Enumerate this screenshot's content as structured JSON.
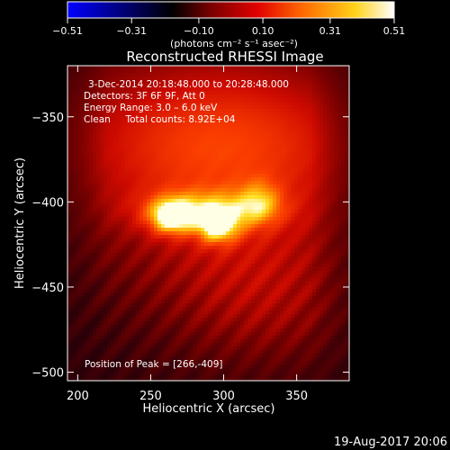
{
  "chart_data": {
    "type": "heatmap",
    "title": "Reconstructed RHESSI Image",
    "xlabel": "Heliocentric X (arcsec)",
    "ylabel": "Heliocentric Y (arcsec)",
    "xlim": [
      193,
      386
    ],
    "ylim": [
      -505,
      -320
    ],
    "x_ticks": [
      200,
      250,
      300,
      350
    ],
    "x_tick_labels": [
      "200",
      "250",
      "300",
      "350"
    ],
    "y_ticks": [
      -350,
      -400,
      -450,
      -500
    ],
    "y_tick_labels": [
      "−350",
      "−400",
      "−450",
      "−500"
    ],
    "colorbar": {
      "min": -0.51,
      "max": 0.51,
      "ticks": [
        -0.51,
        -0.31,
        -0.1,
        0.1,
        0.31,
        0.51
      ],
      "tick_labels": [
        "−0.51",
        "−0.31",
        "−0.10",
        "0.10",
        "0.31",
        "0.51"
      ],
      "units_label": "(photons cm⁻² s⁻¹ asec⁻²)",
      "colors": [
        "#0000ff",
        "#000000",
        "#7a0000",
        "#e00000",
        "#ff6a00",
        "#ffd21a",
        "#ffffff"
      ]
    },
    "annotations": {
      "time_range": "3‑Dec‑2014 20:18:48.000 to 20:28:48.000",
      "detectors": "Detectors: 3F 6F 9F, Att 0",
      "energy_range": "Energy Range: 3.0 – 6.0 keV",
      "method_counts": "Clean     Total counts: 8.92E+04",
      "peak": "Position of Peak = [266,‑409]"
    },
    "sources": [
      {
        "x": 264,
        "y": -409,
        "intensity": 0.51
      },
      {
        "x": 296,
        "y": -415,
        "intensity": 0.47
      }
    ],
    "peak_position": [
      266,
      -409
    ],
    "sources_drawn": "bright emission arc between x≈250 and x≈335 near y≈-410"
  },
  "footer": {
    "date_stamp": "19‑Aug‑2017 20:06"
  }
}
